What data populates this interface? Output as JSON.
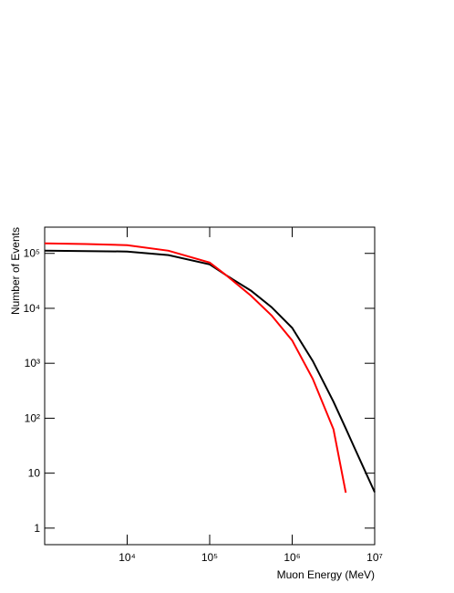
{
  "chart_data": {
    "type": "line",
    "x_label": "Muon Energy (MeV)",
    "y_label": "Number of Events",
    "x": [
      1000,
      3162,
      10000,
      31623,
      100000,
      158489,
      316228,
      562341,
      1000000,
      1778279,
      3162278,
      4466836,
      5623413,
      10000000
    ],
    "series": [
      {
        "color": "#000000",
        "values": [
          112000,
          110000,
          108000,
          93000,
          63000,
          40000,
          21000,
          10500,
          4400,
          1100,
          200,
          65,
          30,
          4.5
        ]
      },
      {
        "color": "#ff0000",
        "values": [
          152000,
          148000,
          141000,
          112000,
          68000,
          40000,
          17000,
          7400,
          2600,
          520,
          63,
          4.4,
          null,
          null
        ]
      }
    ],
    "xscale": "log",
    "yscale": "log",
    "xlim": [
      1000,
      10000000
    ],
    "ylim": [
      0.5,
      300000
    ],
    "xticks": [
      {
        "value": 10000,
        "label": "10⁴"
      },
      {
        "value": 100000,
        "label": "10⁵"
      },
      {
        "value": 1000000,
        "label": "10⁶"
      },
      {
        "value": 10000000,
        "label": "10⁷"
      }
    ],
    "yticks": [
      1,
      10,
      {
        "value": 100,
        "label": "10²"
      },
      {
        "value": 1000,
        "label": "10³"
      },
      {
        "value": 10000,
        "label": "10⁴"
      },
      {
        "value": 100000,
        "label": "10⁵"
      }
    ]
  }
}
